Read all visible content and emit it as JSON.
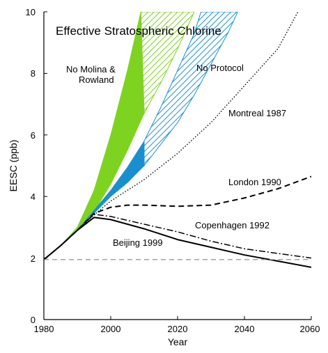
{
  "chart_data": {
    "type": "line",
    "title": "Effective Stratospheric Chlorine",
    "xlabel": "Year",
    "ylabel": "EESC (ppb)",
    "xlim": [
      1980,
      2060
    ],
    "ylim": [
      0,
      10
    ],
    "xticks": [
      1980,
      2000,
      2020,
      2040,
      2060
    ],
    "yticks": [
      0,
      2,
      4,
      6,
      8,
      10
    ],
    "grid": false,
    "colors": {
      "green": "#7ed321",
      "blue": "#1a8fcf",
      "axis": "#000000"
    },
    "series": [
      {
        "name": "No Molina & Rowland",
        "style": "band",
        "fill": "solid-then-hatched",
        "hatch_from_x": 2010,
        "lower": [
          [
            1980,
            1.95
          ],
          [
            1985,
            2.4
          ],
          [
            1990,
            2.9
          ],
          [
            1995,
            3.5
          ],
          [
            2000,
            4.4
          ],
          [
            2005,
            5.5
          ],
          [
            2010,
            6.7
          ],
          [
            2015,
            7.7
          ],
          [
            2020,
            8.8
          ],
          [
            2025,
            10.0
          ]
        ],
        "upper": [
          [
            1980,
            1.95
          ],
          [
            1985,
            2.4
          ],
          [
            1990,
            3.0
          ],
          [
            1995,
            4.2
          ],
          [
            2000,
            6.0
          ],
          [
            2005,
            8.1
          ],
          [
            2009,
            10.0
          ]
        ]
      },
      {
        "name": "No Protocol",
        "style": "band",
        "fill": "solid-then-hatched",
        "hatch_from_x": 2010,
        "lower": [
          [
            1980,
            1.95
          ],
          [
            1985,
            2.4
          ],
          [
            1990,
            2.9
          ],
          [
            1995,
            3.45
          ],
          [
            2000,
            4.0
          ],
          [
            2005,
            4.45
          ],
          [
            2010,
            5.0
          ],
          [
            2015,
            5.7
          ],
          [
            2020,
            6.4
          ],
          [
            2025,
            7.3
          ],
          [
            2030,
            8.3
          ],
          [
            2035,
            9.3
          ],
          [
            2038,
            10.0
          ]
        ],
        "upper": [
          [
            1980,
            1.95
          ],
          [
            1985,
            2.4
          ],
          [
            1990,
            2.9
          ],
          [
            1995,
            3.55
          ],
          [
            2000,
            4.2
          ],
          [
            2005,
            4.95
          ],
          [
            2010,
            5.8
          ],
          [
            2015,
            6.9
          ],
          [
            2020,
            8.1
          ],
          [
            2025,
            9.3
          ],
          [
            2027,
            10.0
          ]
        ]
      },
      {
        "name": "Montreal 1987",
        "style": "dotted",
        "points": [
          [
            1980,
            1.95
          ],
          [
            1985,
            2.4
          ],
          [
            1990,
            2.9
          ],
          [
            1995,
            3.4
          ],
          [
            2000,
            3.85
          ],
          [
            2010,
            4.55
          ],
          [
            2020,
            5.4
          ],
          [
            2030,
            6.4
          ],
          [
            2040,
            7.6
          ],
          [
            2050,
            8.8
          ],
          [
            2056,
            10.0
          ]
        ]
      },
      {
        "name": "London 1990",
        "style": "dashed",
        "points": [
          [
            1980,
            1.95
          ],
          [
            1985,
            2.4
          ],
          [
            1990,
            2.9
          ],
          [
            1995,
            3.45
          ],
          [
            2000,
            3.65
          ],
          [
            2005,
            3.72
          ],
          [
            2010,
            3.72
          ],
          [
            2020,
            3.68
          ],
          [
            2030,
            3.72
          ],
          [
            2040,
            3.95
          ],
          [
            2050,
            4.25
          ],
          [
            2060,
            4.65
          ]
        ]
      },
      {
        "name": "Copenhagen 1992",
        "style": "dashdot",
        "points": [
          [
            1980,
            1.95
          ],
          [
            1985,
            2.4
          ],
          [
            1990,
            2.9
          ],
          [
            1995,
            3.42
          ],
          [
            2000,
            3.35
          ],
          [
            2010,
            3.1
          ],
          [
            2020,
            2.85
          ],
          [
            2030,
            2.55
          ],
          [
            2040,
            2.3
          ],
          [
            2050,
            2.15
          ],
          [
            2060,
            2.0
          ]
        ]
      },
      {
        "name": "Beijing 1999",
        "style": "solid",
        "points": [
          [
            1980,
            1.95
          ],
          [
            1985,
            2.4
          ],
          [
            1990,
            2.9
          ],
          [
            1995,
            3.32
          ],
          [
            2000,
            3.25
          ],
          [
            2010,
            2.95
          ],
          [
            2020,
            2.6
          ],
          [
            2030,
            2.35
          ],
          [
            2040,
            2.1
          ],
          [
            2050,
            1.9
          ],
          [
            2060,
            1.7
          ]
        ]
      },
      {
        "style": "dashed-gray",
        "points": [
          [
            1980,
            1.95
          ],
          [
            2060,
            1.95
          ]
        ]
      }
    ]
  }
}
